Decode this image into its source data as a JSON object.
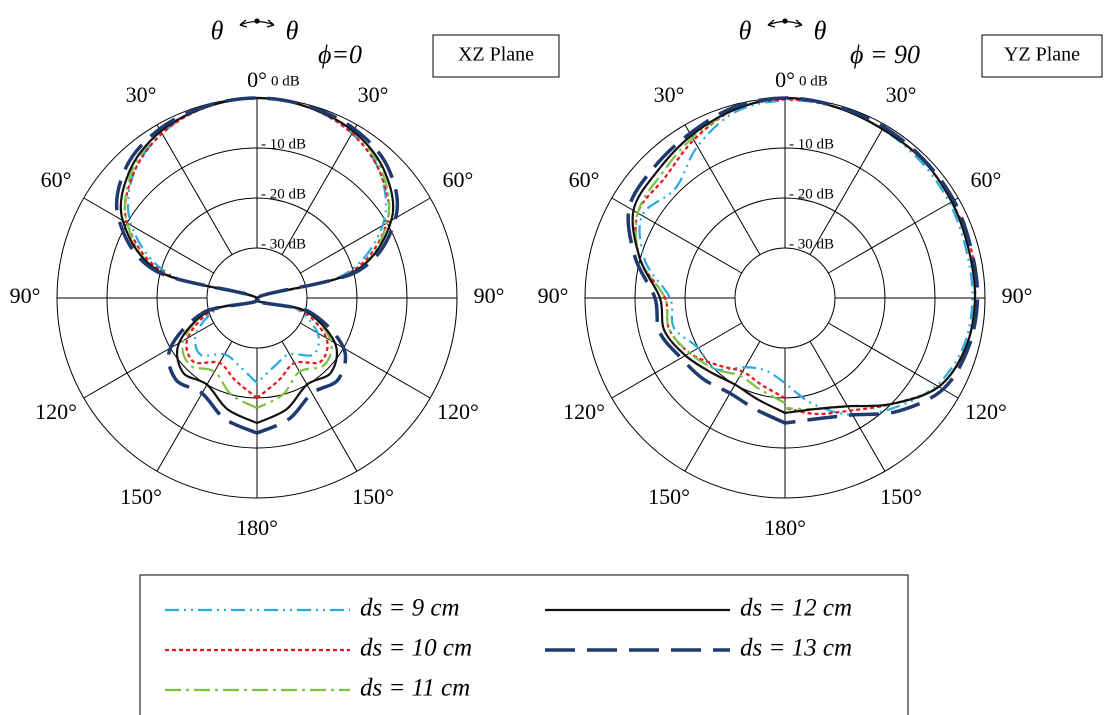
{
  "chart_data": [
    {
      "type": "polar",
      "plane_label": "XZ Plane",
      "phi_label": "ϕ=0",
      "direction_labels": [
        "θ",
        "θ"
      ],
      "rlim": [
        -40,
        0
      ],
      "rticks": [
        {
          "value": -30,
          "label": "- 30 dB"
        },
        {
          "value": -20,
          "label": "- 20 dB"
        },
        {
          "value": -10,
          "label": "- 10 dB"
        },
        {
          "value": 0,
          "label": "0 dB"
        }
      ],
      "thetaticks": [
        {
          "value": -150,
          "label": "150°"
        },
        {
          "value": -120,
          "label": "120°"
        },
        {
          "value": -90,
          "label": "90°"
        },
        {
          "value": -60,
          "label": "60°"
        },
        {
          "value": -30,
          "label": "30°"
        },
        {
          "value": 0,
          "label": "0°"
        },
        {
          "value": 30,
          "label": "30°"
        },
        {
          "value": 60,
          "label": "60°"
        },
        {
          "value": 90,
          "label": "90°"
        },
        {
          "value": 120,
          "label": "120°"
        },
        {
          "value": 150,
          "label": "150°"
        },
        {
          "value": 180,
          "label": "180°"
        }
      ],
      "theta": [
        -180,
        -165,
        -150,
        -135,
        -120,
        -105,
        -90,
        -75,
        -60,
        -45,
        -30,
        -15,
        0,
        15,
        30,
        45,
        60,
        75,
        90,
        105,
        120,
        135,
        150,
        165,
        180
      ],
      "series": [
        {
          "name": "ds = 9 cm",
          "color": "#29abe2",
          "dash": "14 5 2 5 2 5",
          "values": [
            -23,
            -26,
            -27,
            -24,
            -26,
            -32,
            -40,
            -22,
            -11,
            -5,
            -2,
            -0.5,
            0,
            -0.5,
            -2,
            -5,
            -11,
            -22,
            -40,
            -32,
            -26,
            -24,
            -27,
            -26,
            -23
          ]
        },
        {
          "name": "ds = 10 cm",
          "color": "#e8141b",
          "dash": "4 3",
          "values": [
            -20,
            -23,
            -25,
            -22,
            -24,
            -31,
            -40,
            -21,
            -10,
            -5,
            -2,
            -0.5,
            0,
            -0.5,
            -2,
            -5,
            -10,
            -21,
            -40,
            -31,
            -24,
            -22,
            -25,
            -23,
            -20
          ]
        },
        {
          "name": "ds = 11 cm",
          "color": "#7dc242",
          "dash": "16 5 3 5",
          "values": [
            -18,
            -20,
            -23,
            -21,
            -23,
            -30,
            -40,
            -20,
            -10,
            -4.5,
            -1.5,
            -0.5,
            0,
            -0.5,
            -1.5,
            -4.5,
            -10,
            -20,
            -40,
            -30,
            -23,
            -21,
            -23,
            -20,
            -18
          ]
        },
        {
          "name": "ds = 12 cm",
          "color": "#111111",
          "dash": "none",
          "values": [
            -15,
            -17,
            -20,
            -19,
            -22,
            -30,
            -40,
            -20,
            -9,
            -4,
            -1.5,
            -0.5,
            0,
            -0.5,
            -1.5,
            -4,
            -9,
            -20,
            -40,
            -30,
            -22,
            -19,
            -20,
            -17,
            -15
          ]
        },
        {
          "name": "ds = 13 cm",
          "color": "#1f3a6e",
          "dash": "30 12",
          "values": [
            -13,
            -15,
            -18,
            -17,
            -20,
            -29,
            -40,
            -19,
            -8,
            -3,
            -1,
            -0.3,
            0,
            -0.3,
            -1,
            -3,
            -8,
            -19,
            -40,
            -29,
            -20,
            -17,
            -18,
            -15,
            -13
          ]
        }
      ]
    },
    {
      "type": "polar",
      "plane_label": "YZ Plane",
      "phi_label": "ϕ = 90",
      "direction_labels": [
        "θ",
        "θ"
      ],
      "rlim": [
        -40,
        0
      ],
      "rticks": [
        {
          "value": -30,
          "label": "- 30 dB"
        },
        {
          "value": -20,
          "label": "- 20 dB"
        },
        {
          "value": -10,
          "label": "- 10 dB"
        },
        {
          "value": 0,
          "label": "0 dB"
        }
      ],
      "thetaticks": [
        {
          "value": -150,
          "label": "150°"
        },
        {
          "value": -120,
          "label": "120°"
        },
        {
          "value": -90,
          "label": "90°"
        },
        {
          "value": -60,
          "label": "60°"
        },
        {
          "value": -30,
          "label": "30°"
        },
        {
          "value": 0,
          "label": "0°"
        },
        {
          "value": 30,
          "label": "30°"
        },
        {
          "value": 60,
          "label": "60°"
        },
        {
          "value": 90,
          "label": "90°"
        },
        {
          "value": 120,
          "label": "120°"
        },
        {
          "value": 150,
          "label": "150°"
        },
        {
          "value": 180,
          "label": "180°"
        }
      ],
      "theta": [
        -180,
        -165,
        -150,
        -135,
        -120,
        -105,
        -90,
        -75,
        -60,
        -45,
        -30,
        -15,
        0,
        15,
        30,
        45,
        60,
        75,
        90,
        105,
        120,
        135,
        150,
        165,
        180
      ],
      "series": [
        {
          "color": "#29abe2",
          "dash": "14 5 2 5 2 5",
          "values": [
            -23,
            -25,
            -24,
            -20,
            -20,
            -17,
            -17,
            -11,
            -7,
            -9,
            -5,
            -1.5,
            -0.5,
            -0.5,
            -1,
            -1.5,
            -2,
            -2.5,
            -2.5,
            -3,
            -5,
            -9,
            -13,
            -18,
            -23
          ]
        },
        {
          "color": "#e8141b",
          "dash": "4 3",
          "values": [
            -20,
            -22,
            -23,
            -21,
            -18,
            -16,
            -16,
            -10,
            -6,
            -6,
            -3.5,
            -1,
            -0.3,
            -0.5,
            -1,
            -1,
            -1.5,
            -1.5,
            -2,
            -2.5,
            -4.5,
            -10,
            -14,
            -16,
            -18
          ]
        },
        {
          "color": "#7dc242",
          "dash": "16 5 3 5",
          "values": [
            -19,
            -21,
            -22,
            -20,
            -18,
            -16,
            -16,
            -10,
            -6,
            -5,
            -3,
            -1,
            0,
            -0.5,
            -1,
            -1,
            -1.5,
            -2,
            -2,
            -2.5,
            -4.5,
            -10,
            -15,
            -17,
            -18
          ]
        },
        {
          "color": "#111111",
          "dash": "none",
          "values": [
            -17,
            -19,
            -20,
            -19,
            -17,
            -15,
            -15,
            -10,
            -5,
            -4,
            -2.5,
            -1,
            0,
            -0.5,
            -1,
            -1,
            -1.5,
            -2,
            -2,
            -2.5,
            -4.5,
            -10,
            -15,
            -17,
            -17
          ]
        },
        {
          "color": "#1f3a6e",
          "dash": "30 12",
          "values": [
            -15,
            -17,
            -18,
            -17,
            -16,
            -14,
            -14,
            -9,
            -4,
            -3,
            -2,
            -0.5,
            0,
            -0.3,
            -0.5,
            -0.8,
            -1,
            -1.5,
            -1.5,
            -2,
            -3.5,
            -8,
            -13,
            -15,
            -15
          ]
        }
      ]
    }
  ]
}
